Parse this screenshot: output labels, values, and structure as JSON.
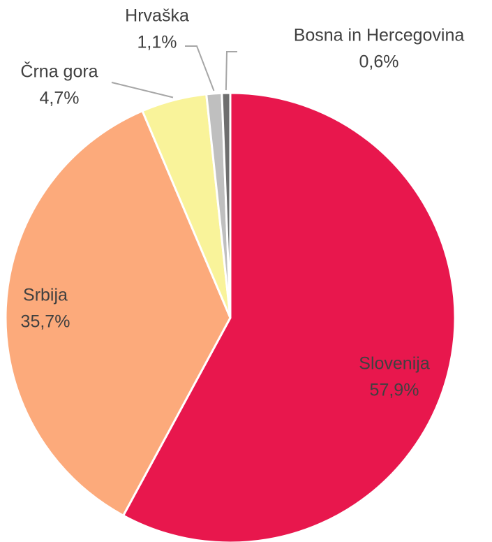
{
  "chart_data": {
    "type": "pie",
    "categories": [
      "Slovenija",
      "Srbija",
      "Črna gora",
      "Hrvaška",
      "Bosna in Hercegovina"
    ],
    "values": [
      57.9,
      35.7,
      4.7,
      1.1,
      0.6
    ],
    "value_labels": [
      "57,9%",
      "35,7%",
      "4,7%",
      "1,1%",
      "0,6%"
    ],
    "colors": [
      "#e8174d",
      "#fcaa7b",
      "#f9f39a",
      "#bfbfbf",
      "#6e6e6e"
    ]
  }
}
